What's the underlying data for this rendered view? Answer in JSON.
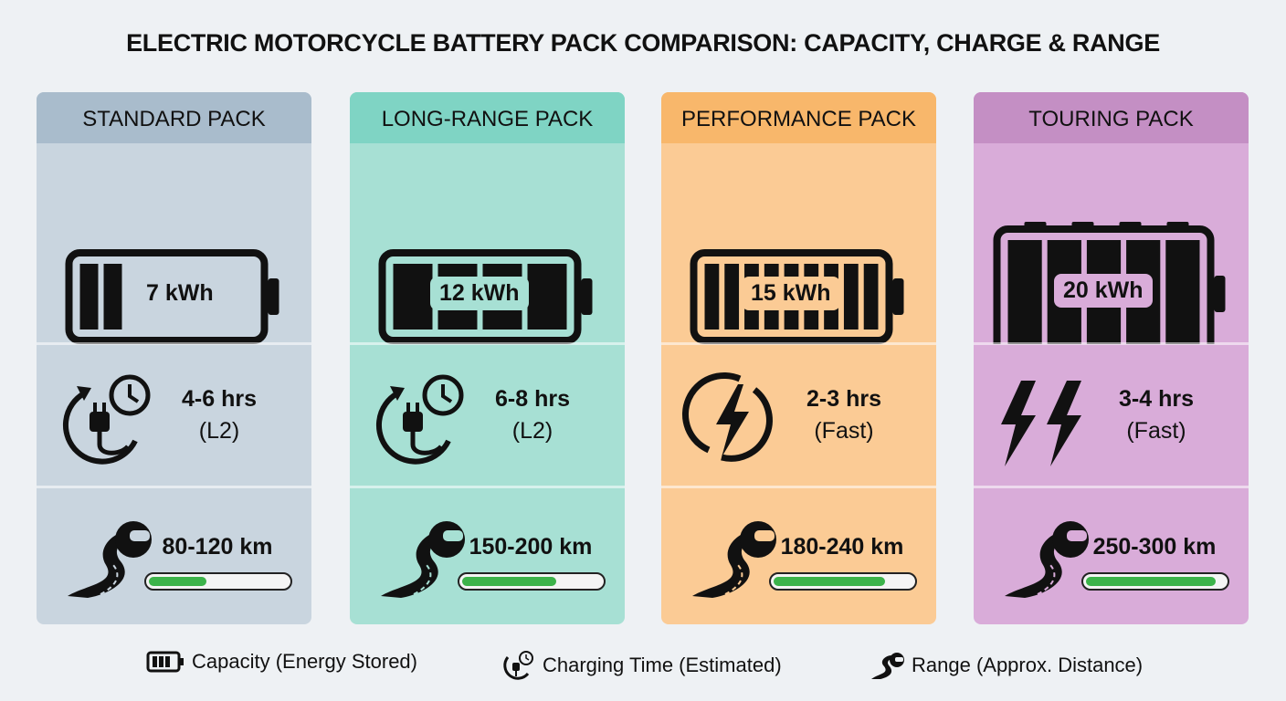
{
  "title": "ELECTRIC MOTORCYCLE BATTERY PACK COMPARISON: CAPACITY, CHARGE & RANGE",
  "packs": [
    {
      "name": "STANDARD PACK",
      "capacity": "7 kWh",
      "charge_time": "4-6 hrs",
      "charge_type": "(L2)",
      "range": "80-120 km"
    },
    {
      "name": "LONG-RANGE PACK",
      "capacity": "12 kWh",
      "charge_time": "6-8 hrs",
      "charge_type": "(L2)",
      "range": "150-200 km"
    },
    {
      "name": "PERFORMANCE PACK",
      "capacity": "15 kWh",
      "charge_time": "2-3 hrs",
      "charge_type": "(Fast)",
      "range": "180-240 km"
    },
    {
      "name": "TOURING PACK",
      "capacity": "20 kWh",
      "charge_time": "3-4 hrs",
      "charge_type": "(Fast)",
      "range": "250-300 km"
    }
  ],
  "legend": [
    "Capacity (Energy Stored)",
    "Charging Time (Estimated)",
    "Range (Approx. Distance)"
  ]
}
